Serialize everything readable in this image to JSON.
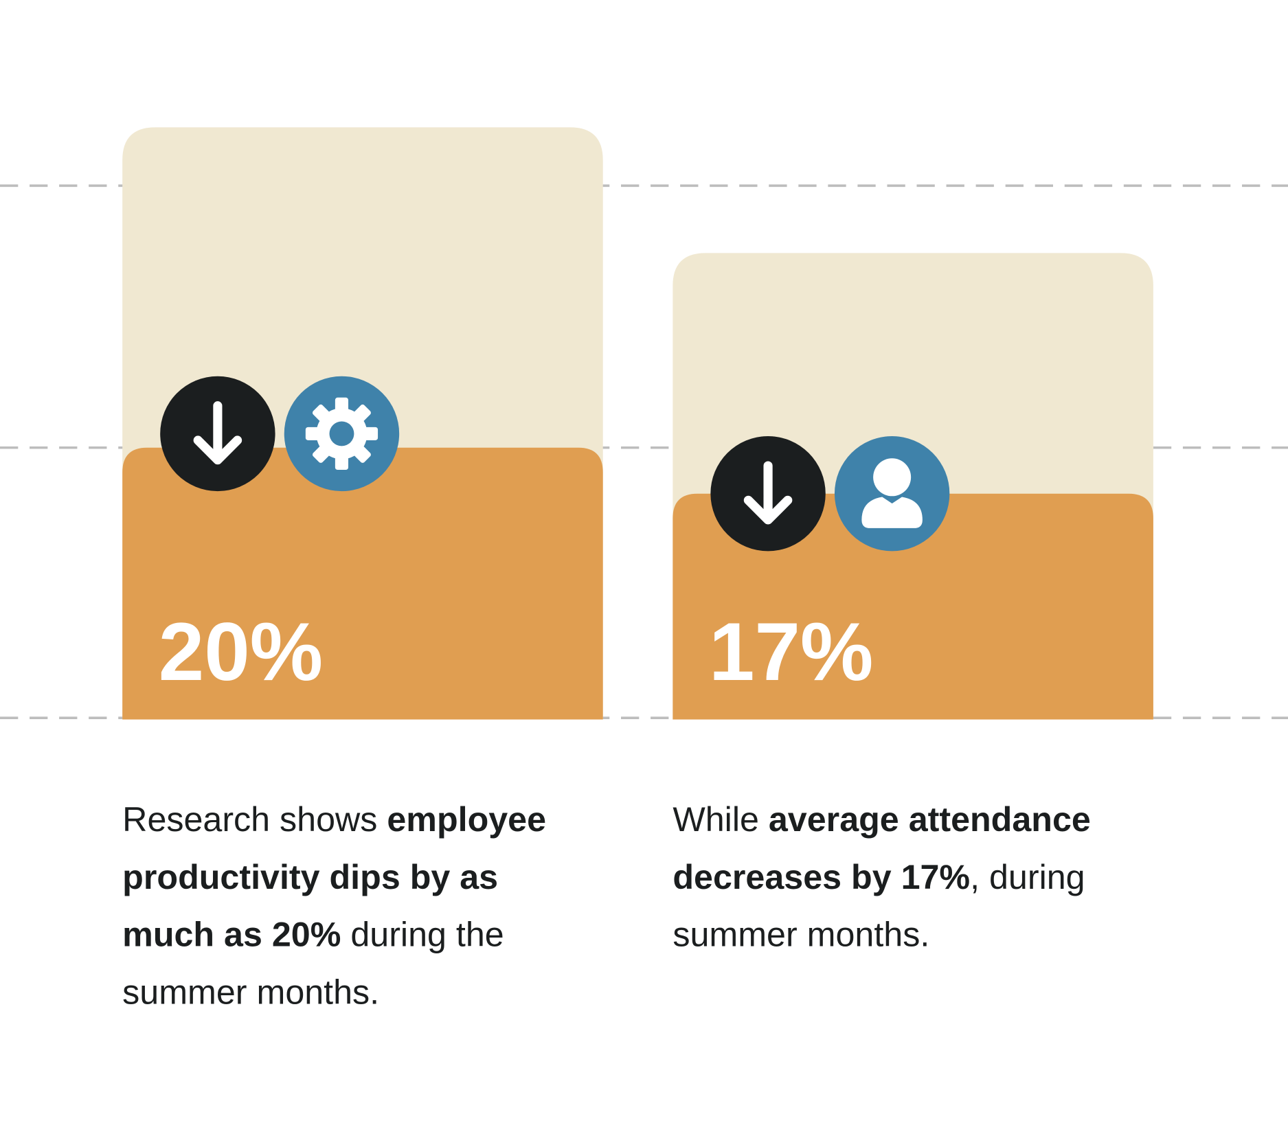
{
  "cards": [
    {
      "stat": "20%",
      "icon": "gear",
      "lines": [
        [
          {
            "text": "Research shows ",
            "bold": false
          },
          {
            "text": "employee",
            "bold": true
          }
        ],
        [
          {
            "text": "productivity dips by as",
            "bold": true
          }
        ],
        [
          {
            "text": "much as 20%",
            "bold": true
          },
          {
            "text": " during the",
            "bold": false
          }
        ],
        [
          {
            "text": "summer months.",
            "bold": false
          }
        ]
      ]
    },
    {
      "stat": "17%",
      "icon": "person",
      "lines": [
        [
          {
            "text": "While ",
            "bold": false
          },
          {
            "text": "average attendance",
            "bold": true
          }
        ],
        [
          {
            "text": "decreases by 17%",
            "bold": true
          },
          {
            "text": ", during",
            "bold": false
          }
        ],
        [
          {
            "text": "summer months.",
            "bold": false
          }
        ]
      ]
    }
  ]
}
